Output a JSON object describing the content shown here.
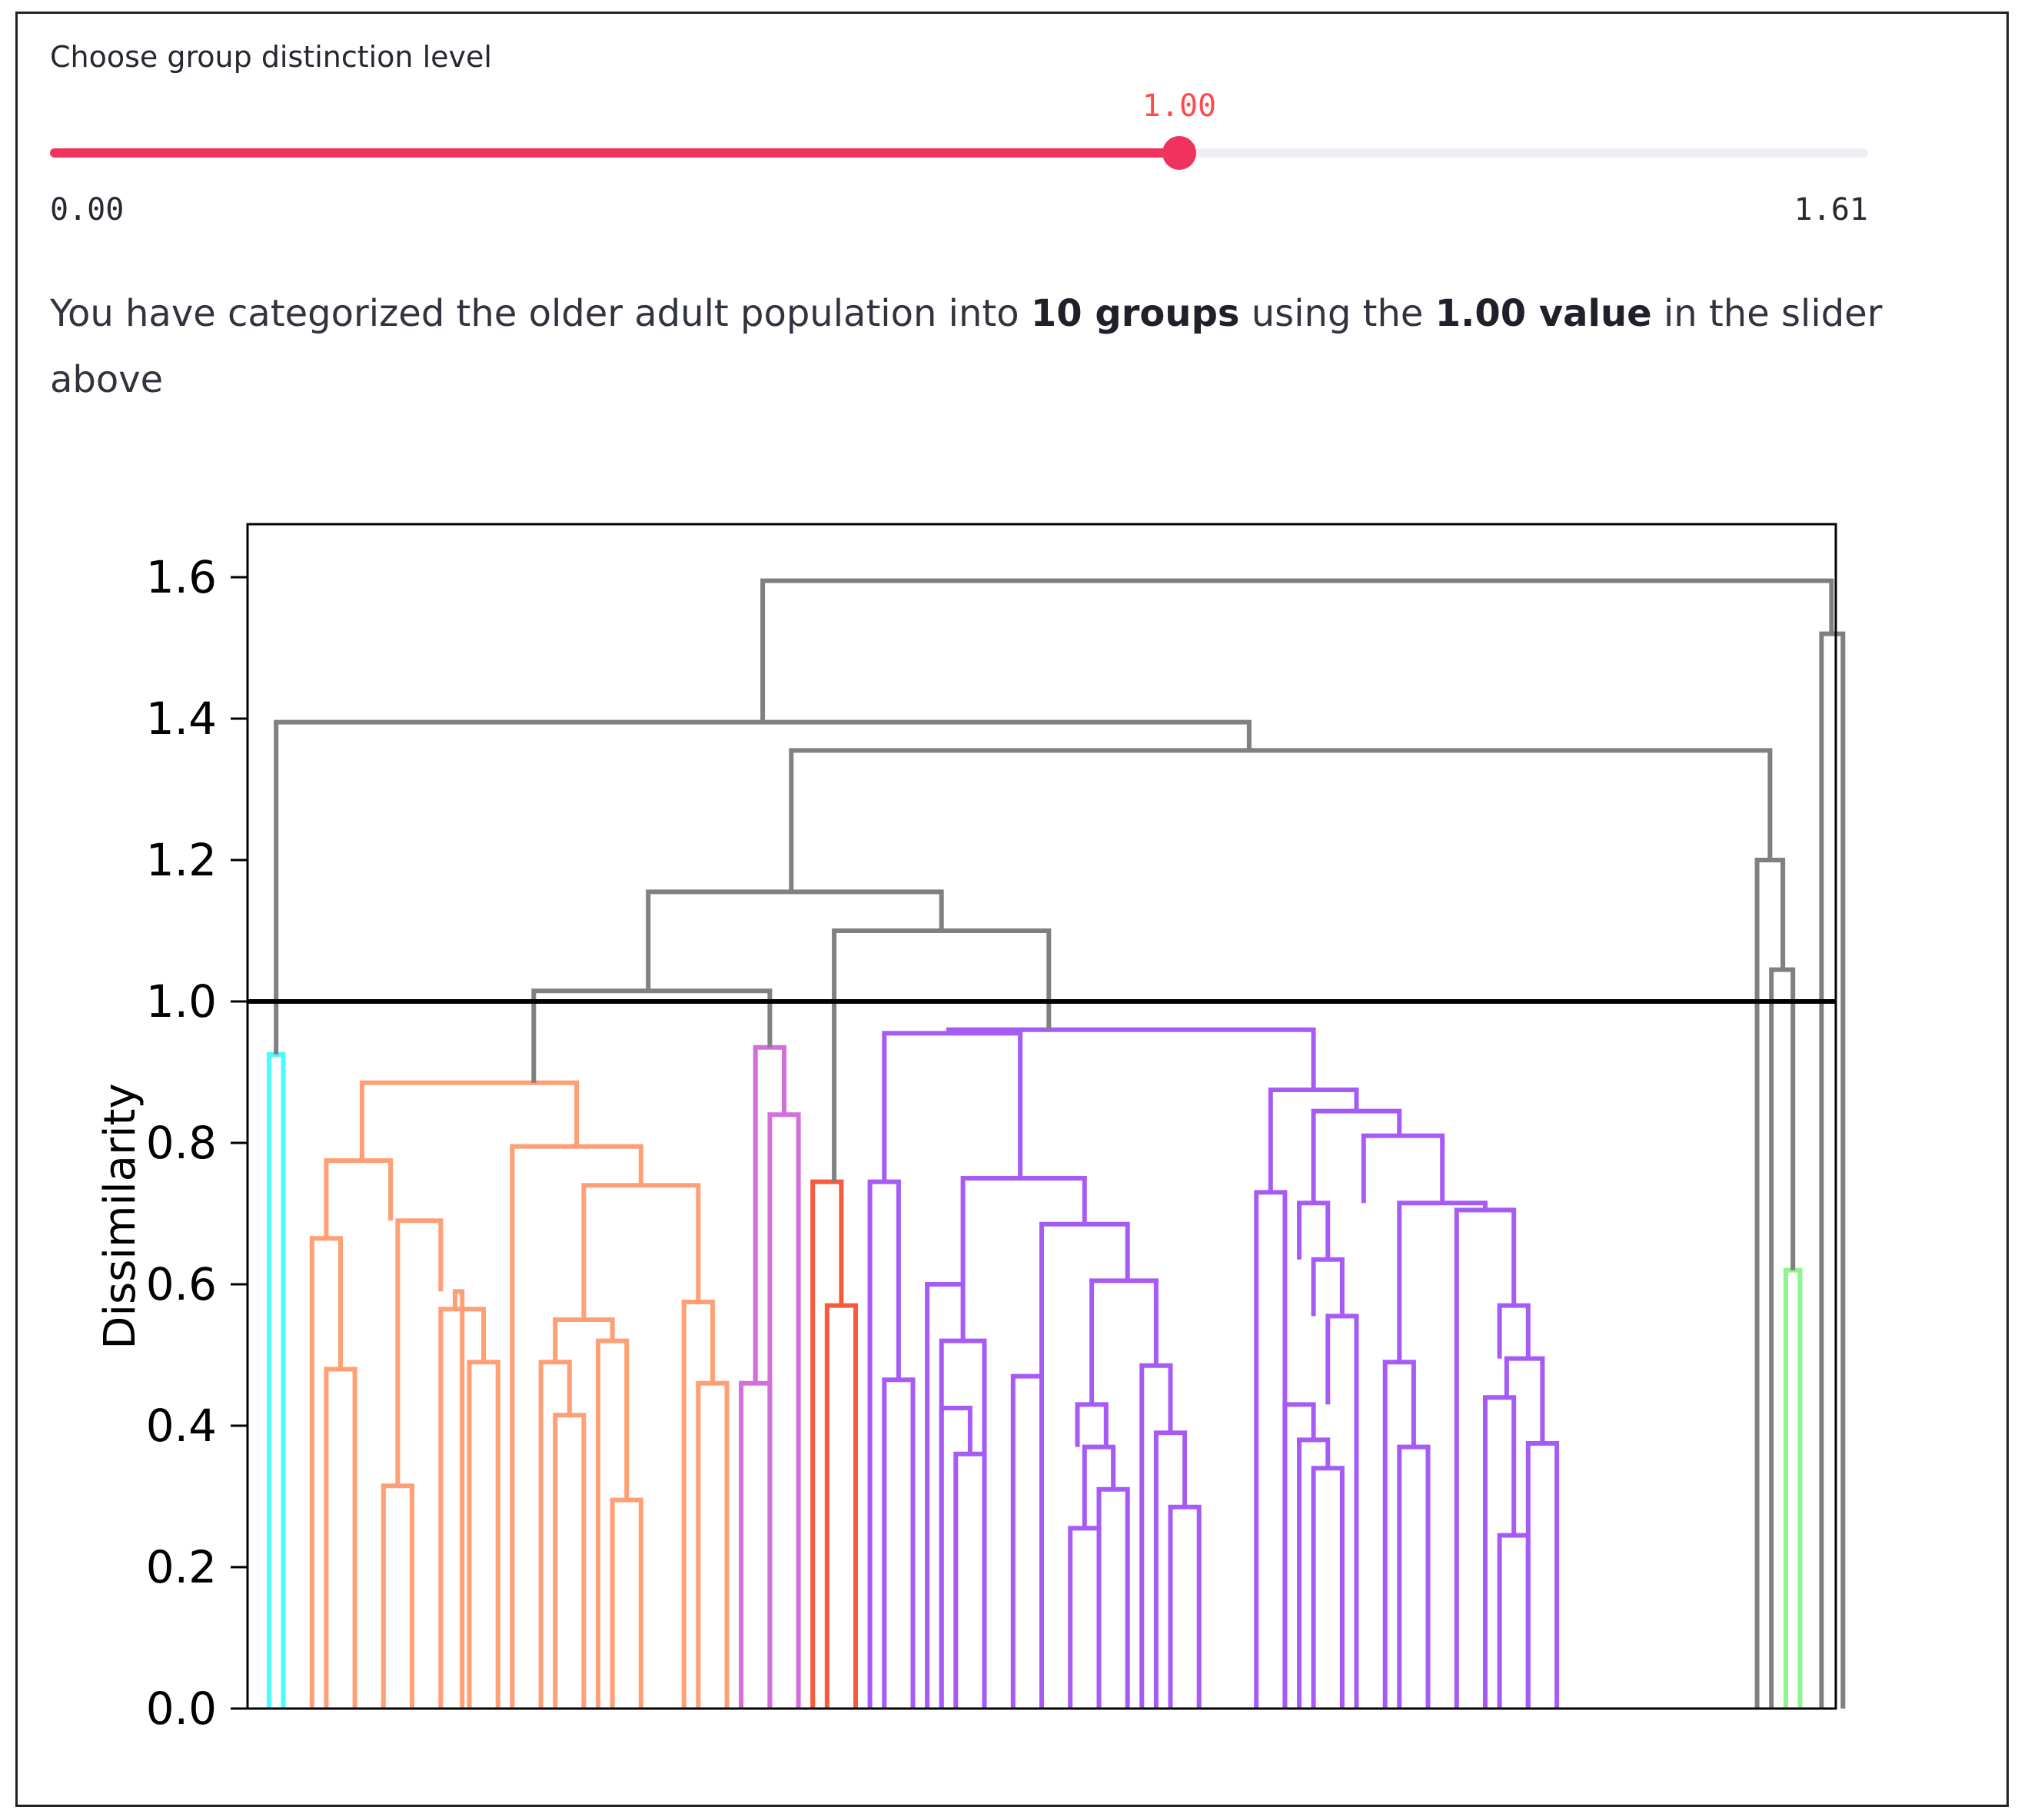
{
  "slider": {
    "label": "Choose group distinction level",
    "value": "1.00",
    "value_num": 1.0,
    "min": "0.00",
    "min_num": 0.0,
    "max": "1.61",
    "max_num": 1.61,
    "accent_color": "#f0335c",
    "track_color": "#eceef3"
  },
  "summary": {
    "prefix": "You have categorized the older adult population into ",
    "groups": "10 groups",
    "middle": " using the ",
    "value_text": "1.00 value",
    "suffix": " in the slider above"
  },
  "chart_data": {
    "type": "dendrogram",
    "title": "",
    "xlabel": "",
    "ylabel": "Dissimilarity",
    "ylim": [
      0,
      1.675
    ],
    "xlim": [
      0,
      111
    ],
    "y_ticks": [
      0.0,
      0.2,
      0.4,
      0.6,
      0.8,
      1.0,
      1.2,
      1.4,
      1.6
    ],
    "y_tick_labels": [
      "0.0",
      "0.2",
      "0.4",
      "0.6",
      "0.8",
      "1.0",
      "1.2",
      "1.4",
      "1.6"
    ],
    "threshold": 1.0,
    "n_leaves": 55,
    "colors": {
      "above_threshold": "#808080",
      "cyan": "#4dfaff",
      "orange": "#ff9f75",
      "orchid": "#d36edb",
      "red": "#f75a3c",
      "purple": "#a65bf5",
      "green": "#8ef58e",
      "threshold_line": "#000000"
    },
    "links": [
      {
        "x": [
          1.5,
          1.5,
          2.5,
          2.5
        ],
        "y": [
          0,
          0.925,
          0.925,
          0
        ],
        "color": "cyan"
      },
      {
        "x": [
          5.5,
          5.5,
          7.5,
          7.5
        ],
        "y": [
          0,
          0.48,
          0.48,
          0
        ],
        "color": "orange"
      },
      {
        "x": [
          4.5,
          4.5,
          6.5,
          6.5
        ],
        "y": [
          0,
          0.665,
          0.665,
          0.48
        ],
        "color": "orange"
      },
      {
        "x": [
          9.5,
          9.5,
          11.5,
          11.5
        ],
        "y": [
          0,
          0.315,
          0.315,
          0
        ],
        "color": "orange"
      },
      {
        "x": [
          15.5,
          15.5,
          17.5,
          17.5
        ],
        "y": [
          0,
          0.49,
          0.49,
          0
        ],
        "color": "orange"
      },
      {
        "x": [
          13.5,
          13.5,
          16.5,
          16.5
        ],
        "y": [
          0,
          0.565,
          0.565,
          0.49
        ],
        "color": "orange"
      },
      {
        "x": [
          14.5,
          14.5,
          15,
          15
        ],
        "y": [
          0.565,
          0.59,
          0.59,
          0
        ],
        "color": "orange"
      },
      {
        "x": [
          10.5,
          10.5,
          13.5,
          13.5
        ],
        "y": [
          0.315,
          0.69,
          0.69,
          0.59
        ],
        "color": "orange"
      },
      {
        "x": [
          5.5,
          5.5,
          10,
          10
        ],
        "y": [
          0.665,
          0.775,
          0.775,
          0.69
        ],
        "color": "orange"
      },
      {
        "x": [
          21.5,
          21.5,
          23.5,
          23.5
        ],
        "y": [
          0,
          0.415,
          0.415,
          0
        ],
        "color": "orange"
      },
      {
        "x": [
          20.5,
          20.5,
          22.5,
          22.5
        ],
        "y": [
          0,
          0.49,
          0.49,
          0.415
        ],
        "color": "orange"
      },
      {
        "x": [
          25.5,
          25.5,
          27.5,
          27.5
        ],
        "y": [
          0,
          0.295,
          0.295,
          0
        ],
        "color": "orange"
      },
      {
        "x": [
          24.5,
          24.5,
          26.5,
          26.5
        ],
        "y": [
          0,
          0.52,
          0.52,
          0.295
        ],
        "color": "orange"
      },
      {
        "x": [
          21.5,
          21.5,
          25.5,
          25.5
        ],
        "y": [
          0.49,
          0.55,
          0.55,
          0.52
        ],
        "color": "orange"
      },
      {
        "x": [
          31.5,
          31.5,
          33.5,
          33.5
        ],
        "y": [
          0,
          0.46,
          0.46,
          0
        ],
        "color": "orange"
      },
      {
        "x": [
          30.5,
          30.5,
          32.5,
          32.5
        ],
        "y": [
          0,
          0.575,
          0.575,
          0.46
        ],
        "color": "orange"
      },
      {
        "x": [
          23.5,
          23.5,
          31.5,
          31.5
        ],
        "y": [
          0.55,
          0.74,
          0.74,
          0.575
        ],
        "color": "orange"
      },
      {
        "x": [
          18.5,
          18.5,
          27.5,
          27.5
        ],
        "y": [
          0,
          0.795,
          0.795,
          0.74
        ],
        "color": "orange"
      },
      {
        "x": [
          8,
          8,
          23,
          23
        ],
        "y": [
          0.775,
          0.885,
          0.885,
          0.795
        ],
        "color": "orange"
      },
      {
        "x": [
          36.5,
          36.5,
          38.5,
          38.5
        ],
        "y": [
          0,
          0.84,
          0.84,
          0
        ],
        "color": "orchid"
      },
      {
        "x": [
          34.5,
          34.5,
          36.5,
          36.5
        ],
        "y": [
          0,
          0.46,
          0.46,
          0
        ],
        "color": "orchid"
      },
      {
        "x": [
          35.5,
          35.5,
          37.5,
          37.5
        ],
        "y": [
          0.46,
          0.935,
          0.935,
          0.84
        ],
        "color": "orchid"
      },
      {
        "x": [
          40.5,
          40.5,
          42.5,
          42.5
        ],
        "y": [
          0,
          0.57,
          0.57,
          0
        ],
        "color": "red"
      },
      {
        "x": [
          39.5,
          39.5,
          41.5,
          41.5
        ],
        "y": [
          0,
          0.745,
          0.745,
          0.57
        ],
        "color": "red"
      },
      {
        "x": [
          44.5,
          44.5,
          46.5,
          46.5
        ],
        "y": [
          0,
          0.465,
          0.465,
          0
        ],
        "color": "purple"
      },
      {
        "x": [
          43.5,
          43.5,
          45.5,
          45.5
        ],
        "y": [
          0,
          0.745,
          0.745,
          0.465
        ],
        "color": "purple"
      },
      {
        "x": [
          49.5,
          49.5,
          51.5,
          51.5
        ],
        "y": [
          0,
          0.36,
          0.36,
          0
        ],
        "color": "purple"
      },
      {
        "x": [
          48.5,
          48.5,
          50.5,
          50.5
        ],
        "y": [
          0,
          0.425,
          0.425,
          0.36
        ],
        "color": "purple"
      },
      {
        "x": [
          48.5,
          48.5,
          51.5,
          51.5
        ],
        "y": [
          0,
          0.52,
          0.52,
          0
        ],
        "color": "purple"
      },
      {
        "x": [
          47.5,
          47.5,
          50,
          50
        ],
        "y": [
          0,
          0.6,
          0.6,
          0.52
        ],
        "color": "purple"
      },
      {
        "x": [
          53.5,
          53.5,
          55.5,
          55.5
        ],
        "y": [
          0,
          0.47,
          0.47,
          0
        ],
        "color": "purple"
      },
      {
        "x": [
          57.5,
          57.5,
          59.5,
          59.5
        ],
        "y": [
          0,
          0.255,
          0.255,
          0
        ],
        "color": "purple"
      },
      {
        "x": [
          59.5,
          59.5,
          61.5,
          61.5
        ],
        "y": [
          0,
          0.31,
          0.31,
          0
        ],
        "color": "purple"
      },
      {
        "x": [
          58.5,
          58.5,
          60.5,
          60.5
        ],
        "y": [
          0.255,
          0.37,
          0.37,
          0.31
        ],
        "color": "purple"
      },
      {
        "x": [
          58,
          58,
          60,
          60
        ],
        "y": [
          0.37,
          0.43,
          0.43,
          0.37
        ],
        "color": "purple"
      },
      {
        "x": [
          64.5,
          64.5,
          66.5,
          66.5
        ],
        "y": [
          0,
          0.285,
          0.285,
          0
        ],
        "color": "purple"
      },
      {
        "x": [
          63.5,
          63.5,
          65.5,
          65.5
        ],
        "y": [
          0,
          0.39,
          0.39,
          0.285
        ],
        "color": "purple"
      },
      {
        "x": [
          62.5,
          62.5,
          64.5,
          64.5
        ],
        "y": [
          0,
          0.485,
          0.485,
          0.39
        ],
        "color": "purple"
      },
      {
        "x": [
          59,
          59,
          63.5,
          63.5
        ],
        "y": [
          0.43,
          0.605,
          0.605,
          0.485
        ],
        "color": "purple"
      },
      {
        "x": [
          55.5,
          55.5,
          61.5,
          61.5
        ],
        "y": [
          0.47,
          0.685,
          0.685,
          0.605
        ],
        "color": "purple"
      },
      {
        "x": [
          50,
          50,
          58.5,
          58.5
        ],
        "y": [
          0.6,
          0.75,
          0.75,
          0.685
        ],
        "color": "purple"
      },
      {
        "x": [
          44.5,
          44.5,
          54,
          54
        ],
        "y": [
          0.745,
          0.955,
          0.955,
          0.75
        ],
        "color": "purple"
      },
      {
        "x": [
          70.5,
          70.5,
          72.5,
          72.5
        ],
        "y": [
          0,
          0.73,
          0.73,
          0
        ],
        "color": "purple"
      },
      {
        "x": [
          74.5,
          74.5,
          76.5,
          76.5
        ],
        "y": [
          0,
          0.34,
          0.34,
          0
        ],
        "color": "purple"
      },
      {
        "x": [
          73.5,
          73.5,
          75.5,
          75.5
        ],
        "y": [
          0,
          0.38,
          0.38,
          0.34
        ],
        "color": "purple"
      },
      {
        "x": [
          72.5,
          72.5,
          74.5,
          74.5
        ],
        "y": [
          0,
          0.43,
          0.43,
          0.38
        ],
        "color": "purple"
      },
      {
        "x": [
          75.5,
          75.5,
          77.5,
          77.5
        ],
        "y": [
          0.43,
          0.555,
          0.555,
          0
        ],
        "color": "purple"
      },
      {
        "x": [
          74.5,
          74.5,
          76.5,
          76.5
        ],
        "y": [
          0.555,
          0.635,
          0.635,
          0.555
        ],
        "color": "purple"
      },
      {
        "x": [
          73.5,
          73.5,
          75.5,
          75.5
        ],
        "y": [
          0.635,
          0.715,
          0.715,
          0.635
        ],
        "color": "purple"
      },
      {
        "x": [
          80.5,
          80.5,
          82.5,
          82.5
        ],
        "y": [
          0,
          0.37,
          0.37,
          0
        ],
        "color": "purple"
      },
      {
        "x": [
          79.5,
          79.5,
          81.5,
          81.5
        ],
        "y": [
          0,
          0.49,
          0.49,
          0.37
        ],
        "color": "purple"
      },
      {
        "x": [
          87.5,
          87.5,
          89.5,
          89.5
        ],
        "y": [
          0,
          0.245,
          0.245,
          0
        ],
        "color": "purple"
      },
      {
        "x": [
          86.5,
          86.5,
          88.5,
          88.5
        ],
        "y": [
          0,
          0.44,
          0.44,
          0.245
        ],
        "color": "purple"
      },
      {
        "x": [
          89.5,
          89.5,
          91.5,
          91.5
        ],
        "y": [
          0,
          0.375,
          0.375,
          0
        ],
        "color": "purple"
      },
      {
        "x": [
          88,
          88,
          90.5,
          90.5
        ],
        "y": [
          0.44,
          0.495,
          0.495,
          0.375
        ],
        "color": "purple"
      },
      {
        "x": [
          87.5,
          87.5,
          89.5,
          89.5
        ],
        "y": [
          0.495,
          0.57,
          0.57,
          0.495
        ],
        "color": "purple"
      },
      {
        "x": [
          84.5,
          84.5,
          88.5,
          88.5
        ],
        "y": [
          0,
          0.705,
          0.705,
          0.57
        ],
        "color": "purple"
      },
      {
        "x": [
          80.5,
          80.5,
          86.5,
          86.5
        ],
        "y": [
          0.49,
          0.715,
          0.715,
          0.705
        ],
        "color": "purple"
      },
      {
        "x": [
          78,
          78,
          83.5,
          83.5
        ],
        "y": [
          0.715,
          0.81,
          0.81,
          0.715
        ],
        "color": "purple"
      },
      {
        "x": [
          74.5,
          74.5,
          80.5,
          80.5
        ],
        "y": [
          0.715,
          0.845,
          0.845,
          0.81
        ],
        "color": "purple"
      },
      {
        "x": [
          71.5,
          71.5,
          77.5,
          77.5
        ],
        "y": [
          0.73,
          0.875,
          0.875,
          0.845
        ],
        "color": "purple"
      },
      {
        "x": [
          49,
          49,
          74.5,
          74.5
        ],
        "y": [
          0.955,
          0.96,
          0.96,
          0.875
        ],
        "color": "purple"
      },
      {
        "x": [
          107.5,
          107.5,
          108.5,
          108.5
        ],
        "y": [
          0,
          0.62,
          0.62,
          0
        ],
        "color": "green"
      },
      {
        "x": [
          20,
          20,
          36.5,
          36.5
        ],
        "y": [
          0.885,
          1.015,
          1.015,
          0.935
        ],
        "color": "above_threshold"
      },
      {
        "x": [
          41,
          41,
          56,
          56
        ],
        "y": [
          0.745,
          1.1,
          1.1,
          0.96
        ],
        "color": "above_threshold"
      },
      {
        "x": [
          28,
          28,
          48.5,
          48.5
        ],
        "y": [
          1.015,
          1.155,
          1.155,
          1.1
        ],
        "color": "above_threshold"
      },
      {
        "x": [
          106.5,
          106.5,
          108,
          108
        ],
        "y": [
          0,
          1.045,
          1.045,
          0.62
        ],
        "color": "above_threshold"
      },
      {
        "x": [
          105.5,
          105.5,
          107.3,
          107.3
        ],
        "y": [
          0,
          1.2,
          1.2,
          1.045
        ],
        "color": "above_threshold"
      },
      {
        "x": [
          38,
          38,
          106.4,
          106.4
        ],
        "y": [
          1.155,
          1.355,
          1.355,
          1.2
        ],
        "color": "above_threshold"
      },
      {
        "x": [
          2,
          2,
          70,
          70
        ],
        "y": [
          0.925,
          1.395,
          1.395,
          1.355
        ],
        "color": "above_threshold"
      },
      {
        "x": [
          110,
          110,
          111.5,
          111.5
        ],
        "y": [
          0,
          1.52,
          1.52,
          0
        ],
        "color": "above_threshold"
      },
      {
        "x": [
          36,
          36,
          110.7,
          110.7
        ],
        "y": [
          1.395,
          1.595,
          1.595,
          1.52
        ],
        "color": "above_threshold"
      }
    ]
  }
}
